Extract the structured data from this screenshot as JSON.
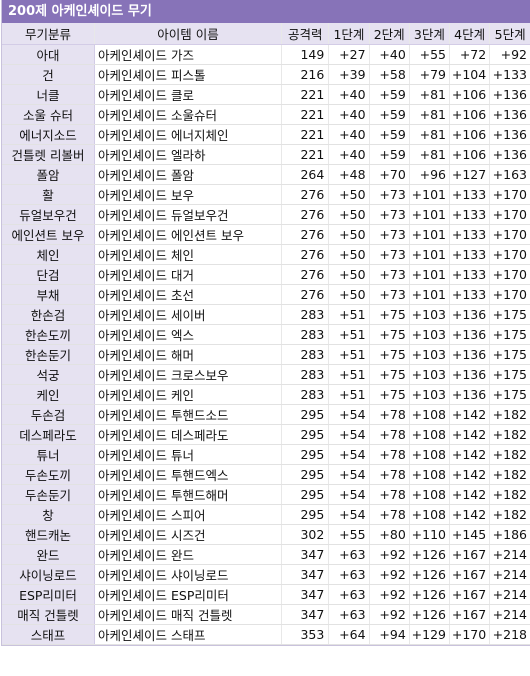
{
  "title": "200제 아케인셰이드 무기",
  "headers": [
    "무기분류",
    "아이템 이름",
    "공격력",
    "1단계",
    "2단계",
    "3단계",
    "4단계",
    "5단계"
  ],
  "rows": [
    {
      "category": "아대",
      "item": "아케인셰이드 가즈",
      "attack": "149",
      "stages": [
        "+27",
        "+40",
        "+55",
        "+72",
        "+92"
      ]
    },
    {
      "category": "건",
      "item": "아케인셰이드 피스톨",
      "attack": "216",
      "stages": [
        "+39",
        "+58",
        "+79",
        "+104",
        "+133"
      ]
    },
    {
      "category": "너클",
      "item": "아케인셰이드 클로",
      "attack": "221",
      "stages": [
        "+40",
        "+59",
        "+81",
        "+106",
        "+136"
      ]
    },
    {
      "category": "소울 슈터",
      "item": "아케인셰이드 소울슈터",
      "attack": "221",
      "stages": [
        "+40",
        "+59",
        "+81",
        "+106",
        "+136"
      ]
    },
    {
      "category": "에너지소드",
      "item": "아케인셰이드 에너지체인",
      "attack": "221",
      "stages": [
        "+40",
        "+59",
        "+81",
        "+106",
        "+136"
      ]
    },
    {
      "category": "건틀렛 리볼버",
      "item": "아케인셰이드 엘라하",
      "attack": "221",
      "stages": [
        "+40",
        "+59",
        "+81",
        "+106",
        "+136"
      ]
    },
    {
      "category": "폴암",
      "item": "아케인셰이드 폴암",
      "attack": "264",
      "stages": [
        "+48",
        "+70",
        "+96",
        "+127",
        "+163"
      ]
    },
    {
      "category": "활",
      "item": "아케인셰이드 보우",
      "attack": "276",
      "stages": [
        "+50",
        "+73",
        "+101",
        "+133",
        "+170"
      ]
    },
    {
      "category": "듀얼보우건",
      "item": "아케인셰이드 듀얼보우건",
      "attack": "276",
      "stages": [
        "+50",
        "+73",
        "+101",
        "+133",
        "+170"
      ]
    },
    {
      "category": "에인션트 보우",
      "item": "아케인셰이드 에인션트 보우",
      "attack": "276",
      "stages": [
        "+50",
        "+73",
        "+101",
        "+133",
        "+170"
      ]
    },
    {
      "category": "체인",
      "item": "아케인셰이드 체인",
      "attack": "276",
      "stages": [
        "+50",
        "+73",
        "+101",
        "+133",
        "+170"
      ]
    },
    {
      "category": "단검",
      "item": "아케인셰이드 대거",
      "attack": "276",
      "stages": [
        "+50",
        "+73",
        "+101",
        "+133",
        "+170"
      ]
    },
    {
      "category": "부채",
      "item": "아케인셰이드 초선",
      "attack": "276",
      "stages": [
        "+50",
        "+73",
        "+101",
        "+133",
        "+170"
      ]
    },
    {
      "category": "한손검",
      "item": "아케인셰이드 세이버",
      "attack": "283",
      "stages": [
        "+51",
        "+75",
        "+103",
        "+136",
        "+175"
      ]
    },
    {
      "category": "한손도끼",
      "item": "아케인셰이드 엑스",
      "attack": "283",
      "stages": [
        "+51",
        "+75",
        "+103",
        "+136",
        "+175"
      ]
    },
    {
      "category": "한손둔기",
      "item": "아케인셰이드 해머",
      "attack": "283",
      "stages": [
        "+51",
        "+75",
        "+103",
        "+136",
        "+175"
      ]
    },
    {
      "category": "석궁",
      "item": "아케인셰이드 크로스보우",
      "attack": "283",
      "stages": [
        "+51",
        "+75",
        "+103",
        "+136",
        "+175"
      ]
    },
    {
      "category": "케인",
      "item": "아케인셰이드 케인",
      "attack": "283",
      "stages": [
        "+51",
        "+75",
        "+103",
        "+136",
        "+175"
      ]
    },
    {
      "category": "두손검",
      "item": "아케인셰이드 투핸드소드",
      "attack": "295",
      "stages": [
        "+54",
        "+78",
        "+108",
        "+142",
        "+182"
      ]
    },
    {
      "category": "데스페라도",
      "item": "아케인셰이드 데스페라도",
      "attack": "295",
      "stages": [
        "+54",
        "+78",
        "+108",
        "+142",
        "+182"
      ]
    },
    {
      "category": "튜너",
      "item": "아케인셰이드 튜너",
      "attack": "295",
      "stages": [
        "+54",
        "+78",
        "+108",
        "+142",
        "+182"
      ]
    },
    {
      "category": "두손도끼",
      "item": "아케인셰이드 투핸드엑스",
      "attack": "295",
      "stages": [
        "+54",
        "+78",
        "+108",
        "+142",
        "+182"
      ]
    },
    {
      "category": "두손둔기",
      "item": "아케인셰이드 투핸드해머",
      "attack": "295",
      "stages": [
        "+54",
        "+78",
        "+108",
        "+142",
        "+182"
      ]
    },
    {
      "category": "창",
      "item": "아케인셰이드 스피어",
      "attack": "295",
      "stages": [
        "+54",
        "+78",
        "+108",
        "+142",
        "+182"
      ]
    },
    {
      "category": "핸드캐논",
      "item": "아케인셰이드 시즈건",
      "attack": "302",
      "stages": [
        "+55",
        "+80",
        "+110",
        "+145",
        "+186"
      ]
    },
    {
      "category": "완드",
      "item": "아케인셰이드 완드",
      "attack": "347",
      "stages": [
        "+63",
        "+92",
        "+126",
        "+167",
        "+214"
      ]
    },
    {
      "category": "샤이닝로드",
      "item": "아케인셰이드 샤이닝로드",
      "attack": "347",
      "stages": [
        "+63",
        "+92",
        "+126",
        "+167",
        "+214"
      ]
    },
    {
      "category": "ESP리미터",
      "item": "아케인셰이드 ESP리미터",
      "attack": "347",
      "stages": [
        "+63",
        "+92",
        "+126",
        "+167",
        "+214"
      ]
    },
    {
      "category": "매직 건틀렛",
      "item": "아케인셰이드 매직 건틀렛",
      "attack": "347",
      "stages": [
        "+63",
        "+92",
        "+126",
        "+167",
        "+214"
      ]
    },
    {
      "category": "스태프",
      "item": "아케인셰이드 스태프",
      "attack": "353",
      "stages": [
        "+64",
        "+94",
        "+129",
        "+170",
        "+218"
      ]
    }
  ]
}
